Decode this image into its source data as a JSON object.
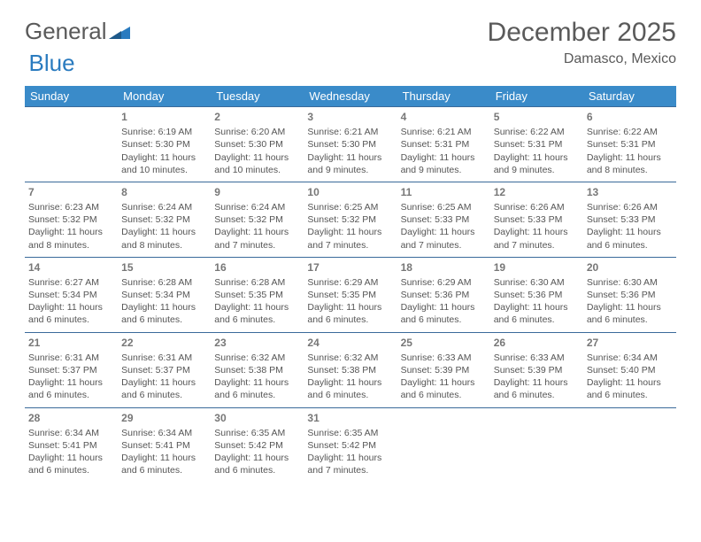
{
  "brand": {
    "part1": "General",
    "part2": "Blue"
  },
  "title": "December 2025",
  "location": "Damasco, Mexico",
  "colors": {
    "header_bg": "#3a8bc9",
    "header_text": "#ffffff",
    "border": "#3a6a9a",
    "text": "#555555",
    "brand_gray": "#5a5a5a",
    "brand_blue": "#2a7bbf"
  },
  "day_labels": [
    "Sunday",
    "Monday",
    "Tuesday",
    "Wednesday",
    "Thursday",
    "Friday",
    "Saturday"
  ],
  "weeks": [
    [
      null,
      {
        "n": "1",
        "sunrise": "Sunrise: 6:19 AM",
        "sunset": "Sunset: 5:30 PM",
        "day": "Daylight: 11 hours and 10 minutes."
      },
      {
        "n": "2",
        "sunrise": "Sunrise: 6:20 AM",
        "sunset": "Sunset: 5:30 PM",
        "day": "Daylight: 11 hours and 10 minutes."
      },
      {
        "n": "3",
        "sunrise": "Sunrise: 6:21 AM",
        "sunset": "Sunset: 5:30 PM",
        "day": "Daylight: 11 hours and 9 minutes."
      },
      {
        "n": "4",
        "sunrise": "Sunrise: 6:21 AM",
        "sunset": "Sunset: 5:31 PM",
        "day": "Daylight: 11 hours and 9 minutes."
      },
      {
        "n": "5",
        "sunrise": "Sunrise: 6:22 AM",
        "sunset": "Sunset: 5:31 PM",
        "day": "Daylight: 11 hours and 9 minutes."
      },
      {
        "n": "6",
        "sunrise": "Sunrise: 6:22 AM",
        "sunset": "Sunset: 5:31 PM",
        "day": "Daylight: 11 hours and 8 minutes."
      }
    ],
    [
      {
        "n": "7",
        "sunrise": "Sunrise: 6:23 AM",
        "sunset": "Sunset: 5:32 PM",
        "day": "Daylight: 11 hours and 8 minutes."
      },
      {
        "n": "8",
        "sunrise": "Sunrise: 6:24 AM",
        "sunset": "Sunset: 5:32 PM",
        "day": "Daylight: 11 hours and 8 minutes."
      },
      {
        "n": "9",
        "sunrise": "Sunrise: 6:24 AM",
        "sunset": "Sunset: 5:32 PM",
        "day": "Daylight: 11 hours and 7 minutes."
      },
      {
        "n": "10",
        "sunrise": "Sunrise: 6:25 AM",
        "sunset": "Sunset: 5:32 PM",
        "day": "Daylight: 11 hours and 7 minutes."
      },
      {
        "n": "11",
        "sunrise": "Sunrise: 6:25 AM",
        "sunset": "Sunset: 5:33 PM",
        "day": "Daylight: 11 hours and 7 minutes."
      },
      {
        "n": "12",
        "sunrise": "Sunrise: 6:26 AM",
        "sunset": "Sunset: 5:33 PM",
        "day": "Daylight: 11 hours and 7 minutes."
      },
      {
        "n": "13",
        "sunrise": "Sunrise: 6:26 AM",
        "sunset": "Sunset: 5:33 PM",
        "day": "Daylight: 11 hours and 6 minutes."
      }
    ],
    [
      {
        "n": "14",
        "sunrise": "Sunrise: 6:27 AM",
        "sunset": "Sunset: 5:34 PM",
        "day": "Daylight: 11 hours and 6 minutes."
      },
      {
        "n": "15",
        "sunrise": "Sunrise: 6:28 AM",
        "sunset": "Sunset: 5:34 PM",
        "day": "Daylight: 11 hours and 6 minutes."
      },
      {
        "n": "16",
        "sunrise": "Sunrise: 6:28 AM",
        "sunset": "Sunset: 5:35 PM",
        "day": "Daylight: 11 hours and 6 minutes."
      },
      {
        "n": "17",
        "sunrise": "Sunrise: 6:29 AM",
        "sunset": "Sunset: 5:35 PM",
        "day": "Daylight: 11 hours and 6 minutes."
      },
      {
        "n": "18",
        "sunrise": "Sunrise: 6:29 AM",
        "sunset": "Sunset: 5:36 PM",
        "day": "Daylight: 11 hours and 6 minutes."
      },
      {
        "n": "19",
        "sunrise": "Sunrise: 6:30 AM",
        "sunset": "Sunset: 5:36 PM",
        "day": "Daylight: 11 hours and 6 minutes."
      },
      {
        "n": "20",
        "sunrise": "Sunrise: 6:30 AM",
        "sunset": "Sunset: 5:36 PM",
        "day": "Daylight: 11 hours and 6 minutes."
      }
    ],
    [
      {
        "n": "21",
        "sunrise": "Sunrise: 6:31 AM",
        "sunset": "Sunset: 5:37 PM",
        "day": "Daylight: 11 hours and 6 minutes."
      },
      {
        "n": "22",
        "sunrise": "Sunrise: 6:31 AM",
        "sunset": "Sunset: 5:37 PM",
        "day": "Daylight: 11 hours and 6 minutes."
      },
      {
        "n": "23",
        "sunrise": "Sunrise: 6:32 AM",
        "sunset": "Sunset: 5:38 PM",
        "day": "Daylight: 11 hours and 6 minutes."
      },
      {
        "n": "24",
        "sunrise": "Sunrise: 6:32 AM",
        "sunset": "Sunset: 5:38 PM",
        "day": "Daylight: 11 hours and 6 minutes."
      },
      {
        "n": "25",
        "sunrise": "Sunrise: 6:33 AM",
        "sunset": "Sunset: 5:39 PM",
        "day": "Daylight: 11 hours and 6 minutes."
      },
      {
        "n": "26",
        "sunrise": "Sunrise: 6:33 AM",
        "sunset": "Sunset: 5:39 PM",
        "day": "Daylight: 11 hours and 6 minutes."
      },
      {
        "n": "27",
        "sunrise": "Sunrise: 6:34 AM",
        "sunset": "Sunset: 5:40 PM",
        "day": "Daylight: 11 hours and 6 minutes."
      }
    ],
    [
      {
        "n": "28",
        "sunrise": "Sunrise: 6:34 AM",
        "sunset": "Sunset: 5:41 PM",
        "day": "Daylight: 11 hours and 6 minutes."
      },
      {
        "n": "29",
        "sunrise": "Sunrise: 6:34 AM",
        "sunset": "Sunset: 5:41 PM",
        "day": "Daylight: 11 hours and 6 minutes."
      },
      {
        "n": "30",
        "sunrise": "Sunrise: 6:35 AM",
        "sunset": "Sunset: 5:42 PM",
        "day": "Daylight: 11 hours and 6 minutes."
      },
      {
        "n": "31",
        "sunrise": "Sunrise: 6:35 AM",
        "sunset": "Sunset: 5:42 PM",
        "day": "Daylight: 11 hours and 7 minutes."
      },
      null,
      null,
      null
    ]
  ]
}
